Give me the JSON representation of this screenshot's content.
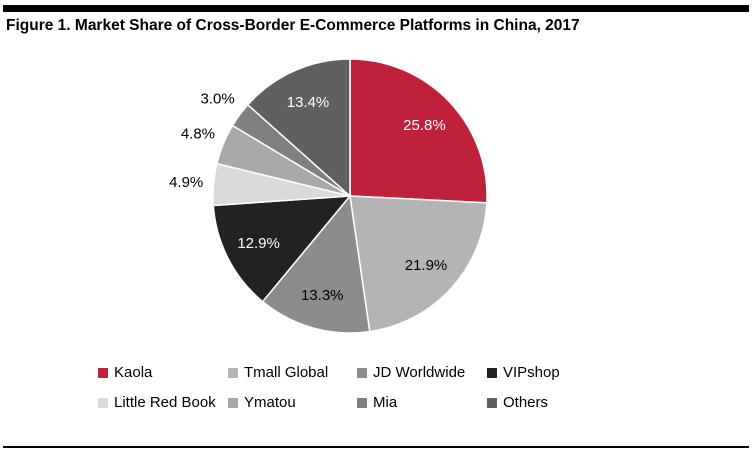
{
  "chart_data": {
    "type": "pie",
    "title": "Figure 1. Market Share of Cross-Border E-Commerce Platforms in China, 2017",
    "categories": [
      "Kaola",
      "Tmall Global",
      "JD Worldwide",
      "VIPshop",
      "Little Red Book",
      "Ymatou",
      "Mia",
      "Others"
    ],
    "values": [
      25.8,
      21.9,
      13.3,
      12.9,
      4.9,
      4.8,
      3.0,
      13.4
    ],
    "labels": [
      "25.8%",
      "21.9%",
      "13.3%",
      "12.9%",
      "4.9%",
      "4.8%",
      "3.0%",
      "13.4%"
    ],
    "colors": [
      "#c0213a",
      "#b4b4b4",
      "#8c8c8c",
      "#222222",
      "#dadada",
      "#a8a8a8",
      "#808080",
      "#606060"
    ],
    "label_colors": [
      "#ffffff",
      "#000000",
      "#000000",
      "#ffffff",
      "#000000",
      "#000000",
      "#000000",
      "#ffffff"
    ],
    "start": "top",
    "direction": "clockwise",
    "legend_position": "bottom"
  }
}
